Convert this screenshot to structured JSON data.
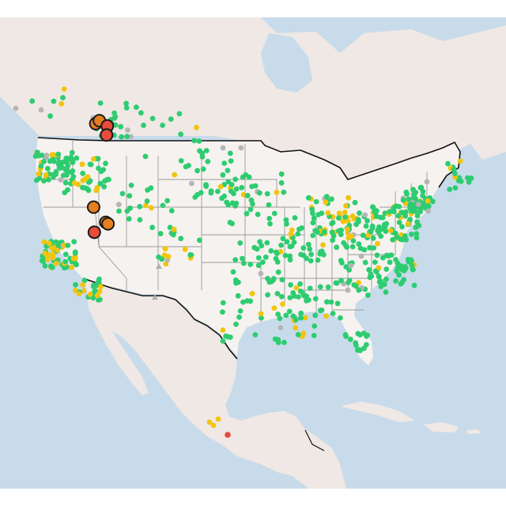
{
  "map": {
    "title": "",
    "colors": {
      "ocean": "#c8dbea",
      "land": "#efe8e4",
      "us_land": "#f6f2ef",
      "country_border": "#111111",
      "state_border": "#9a9a9a",
      "green": "#2ecc71",
      "yellow": "#f1c40f",
      "gray": "#b5b5b5",
      "orange": "#e67e22",
      "red": "#e74c3c",
      "stroke": "#1b1b1b"
    },
    "levels": [
      "good",
      "moderate",
      "unhealthy_sensitive",
      "unhealthy",
      "no_data"
    ],
    "highlighted_sites": [
      {
        "level": "unhealthy_sensitive",
        "lon": -117.0,
        "lat": 48.5
      },
      {
        "level": "unhealthy_sensitive",
        "lon": -116.5,
        "lat": 48.9
      },
      {
        "level": "unhealthy",
        "lon": -115.4,
        "lat": 48.2
      },
      {
        "level": "unhealthy",
        "lon": -115.5,
        "lat": 47.0
      },
      {
        "level": "unhealthy_sensitive",
        "lon": -117.3,
        "lat": 37.5
      },
      {
        "level": "unhealthy_sensitive",
        "lon": -115.6,
        "lat": 35.5
      },
      {
        "level": "unhealthy_sensitive",
        "lon": -115.3,
        "lat": 35.3
      },
      {
        "level": "unhealthy",
        "lon": -117.2,
        "lat": 34.2
      }
    ]
  }
}
